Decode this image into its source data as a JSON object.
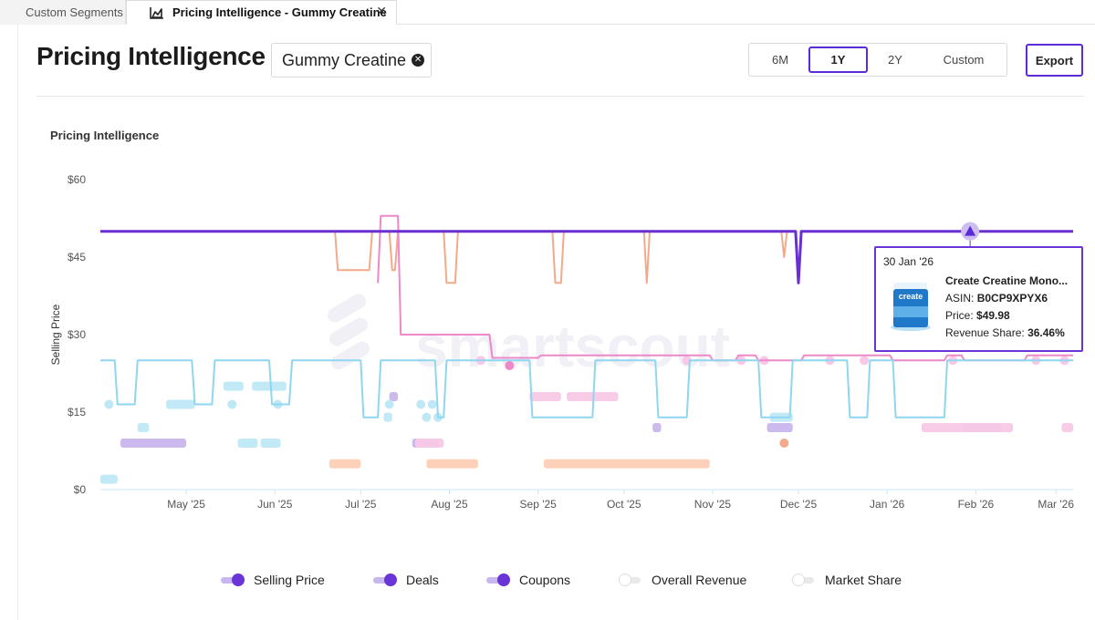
{
  "tabs": [
    {
      "label": "Custom Segments"
    },
    {
      "label": "Pricing Intelligence - Gummy Creatine"
    }
  ],
  "header": {
    "title": "Pricing Intelligence",
    "segment_chip": "Gummy Creatine",
    "ranges": [
      "6M",
      "1Y",
      "2Y",
      "Custom"
    ],
    "selected_range": "1Y",
    "export_label": "Export"
  },
  "chart_data": {
    "type": "line",
    "title": "Pricing Intelligence",
    "ylabel": "Selling Price",
    "y_ticks": [
      "$0",
      "$15",
      "$30",
      "$45",
      "$60"
    ],
    "ylim": [
      0,
      60
    ],
    "x_ticks": [
      "May '25",
      "Jun '25",
      "Jul '25",
      "Aug '25",
      "Sep '25",
      "Oct '25",
      "Nov '25",
      "Dec '25",
      "Jan '26",
      "Feb '26",
      "Mar '26"
    ],
    "xlim": [
      "2025-04-01",
      "2026-03-07"
    ],
    "series": [
      {
        "name": "Selling Price",
        "color": "#6a2fd0",
        "points": [
          [
            "2025-04-01",
            50
          ],
          [
            "2025-11-30",
            50
          ],
          [
            "2025-12-01",
            40
          ],
          [
            "2025-12-02",
            50
          ],
          [
            "2026-03-07",
            50
          ]
        ]
      },
      {
        "color": "#f4a98a",
        "points": [
          [
            "2025-06-22",
            50
          ],
          [
            "2025-06-23",
            42.5
          ],
          [
            "2025-07-04",
            42.5
          ],
          [
            "2025-07-05",
            50
          ],
          [
            "2025-07-11",
            50
          ],
          [
            "2025-07-12",
            42.5
          ],
          [
            "2025-07-13",
            42.5
          ],
          [
            "2025-07-14",
            50
          ],
          [
            "2025-07-30",
            50
          ],
          [
            "2025-07-31",
            40
          ],
          [
            "2025-08-03",
            40
          ],
          [
            "2025-08-04",
            50
          ],
          [
            "2025-09-06",
            50
          ],
          [
            "2025-09-07",
            40
          ],
          [
            "2025-09-09",
            40
          ],
          [
            "2025-09-10",
            50
          ],
          [
            "2025-10-08",
            50
          ],
          [
            "2025-10-09",
            40
          ],
          [
            "2025-10-10",
            50
          ],
          [
            "2025-11-25",
            50
          ],
          [
            "2025-11-26",
            45
          ],
          [
            "2025-11-27",
            50
          ]
        ]
      },
      {
        "color": "#ee88c8",
        "points": [
          [
            "2025-07-07",
            40
          ],
          [
            "2025-07-08",
            53
          ],
          [
            "2025-07-14",
            53
          ],
          [
            "2025-07-15",
            30
          ],
          [
            "2025-08-15",
            30
          ],
          [
            "2025-08-16",
            25.5
          ],
          [
            "2025-09-01",
            25.5
          ],
          [
            "2025-09-02",
            26
          ],
          [
            "2025-10-31",
            26
          ],
          [
            "2025-11-01",
            25
          ],
          [
            "2025-11-09",
            25
          ],
          [
            "2025-11-10",
            26
          ],
          [
            "2025-11-16",
            26
          ],
          [
            "2025-11-17",
            25
          ],
          [
            "2025-12-02",
            25
          ],
          [
            "2025-12-03",
            26
          ],
          [
            "2026-01-02",
            26
          ],
          [
            "2026-01-03",
            25
          ],
          [
            "2026-01-21",
            25
          ],
          [
            "2026-01-22",
            26
          ],
          [
            "2026-01-27",
            26
          ],
          [
            "2026-01-28",
            25
          ],
          [
            "2026-02-18",
            25
          ],
          [
            "2026-02-19",
            26
          ],
          [
            "2026-03-07",
            26
          ]
        ]
      },
      {
        "color": "#8fd6f0",
        "points": [
          [
            "2025-04-01",
            25
          ],
          [
            "2025-04-06",
            25
          ],
          [
            "2025-04-07",
            16.5
          ],
          [
            "2025-04-13",
            16.5
          ],
          [
            "2025-04-14",
            25
          ],
          [
            "2025-05-03",
            25
          ],
          [
            "2025-05-04",
            16.5
          ],
          [
            "2025-05-10",
            16.5
          ],
          [
            "2025-05-11",
            25
          ],
          [
            "2025-05-30",
            25
          ],
          [
            "2025-05-31",
            16.5
          ],
          [
            "2025-06-06",
            16.5
          ],
          [
            "2025-06-07",
            25
          ],
          [
            "2025-07-01",
            25
          ],
          [
            "2025-07-02",
            14
          ],
          [
            "2025-07-07",
            14
          ],
          [
            "2025-07-08",
            25
          ],
          [
            "2025-07-27",
            25
          ],
          [
            "2025-07-28",
            14
          ],
          [
            "2025-07-30",
            14
          ],
          [
            "2025-07-31",
            25
          ],
          [
            "2025-08-29",
            25
          ],
          [
            "2025-08-30",
            14
          ],
          [
            "2025-09-20",
            14
          ],
          [
            "2025-09-21",
            25
          ],
          [
            "2025-10-12",
            25
          ],
          [
            "2025-10-13",
            14
          ],
          [
            "2025-10-23",
            14
          ],
          [
            "2025-10-24",
            25
          ],
          [
            "2025-11-17",
            25
          ],
          [
            "2025-11-18",
            14
          ],
          [
            "2025-11-28",
            14
          ],
          [
            "2025-11-29",
            25
          ],
          [
            "2025-12-18",
            25
          ],
          [
            "2025-12-19",
            14
          ],
          [
            "2025-12-25",
            14
          ],
          [
            "2025-12-26",
            25
          ],
          [
            "2026-01-03",
            25
          ],
          [
            "2026-01-04",
            14
          ],
          [
            "2026-01-21",
            14
          ],
          [
            "2026-01-22",
            25
          ],
          [
            "2026-03-07",
            25
          ]
        ]
      }
    ],
    "bars": [
      {
        "color": "#bfe8f6",
        "from": "2025-04-01",
        "to": "2025-04-07",
        "y": 2
      },
      {
        "color": "#bfe8f6",
        "from": "2025-04-14",
        "to": "2025-04-18",
        "y": 12
      },
      {
        "color": "#bfe8f6",
        "from": "2025-04-24",
        "to": "2025-05-04",
        "y": 16.5
      },
      {
        "color": "#bfe8f6",
        "from": "2025-05-14",
        "to": "2025-05-21",
        "y": 20
      },
      {
        "color": "#bfe8f6",
        "from": "2025-05-24",
        "to": "2025-06-05",
        "y": 20
      },
      {
        "color": "#bfe8f6",
        "from": "2025-05-19",
        "to": "2025-05-26",
        "y": 9
      },
      {
        "color": "#bfe8f6",
        "from": "2025-05-27",
        "to": "2025-06-03",
        "y": 9
      },
      {
        "color": "#bfe8f6",
        "from": "2025-07-09",
        "to": "2025-07-12",
        "y": 14
      },
      {
        "color": "#bfe8f6",
        "from": "2025-11-21",
        "to": "2025-11-29",
        "y": 14
      },
      {
        "color": "#c9b6ee",
        "from": "2025-04-08",
        "to": "2025-05-01",
        "y": 9
      },
      {
        "color": "#c9b6ee",
        "from": "2025-07-19",
        "to": "2025-07-28",
        "y": 9
      },
      {
        "color": "#c9b6ee",
        "from": "2025-07-11",
        "to": "2025-07-14",
        "y": 18
      },
      {
        "color": "#c9b6ee",
        "from": "2025-10-11",
        "to": "2025-10-14",
        "y": 12
      },
      {
        "color": "#c9b6ee",
        "from": "2025-11-20",
        "to": "2025-11-29",
        "y": 12
      },
      {
        "color": "#c9b6ee",
        "from": "2026-01-27",
        "to": "2026-02-10",
        "y": 12
      },
      {
        "color": "#f8c8e6",
        "from": "2025-08-29",
        "to": "2025-09-09",
        "y": 18
      },
      {
        "color": "#f8c8e6",
        "from": "2025-09-11",
        "to": "2025-09-29",
        "y": 18
      },
      {
        "color": "#f8c8e6",
        "from": "2025-07-20",
        "to": "2025-07-30",
        "y": 9
      },
      {
        "color": "#f8c8e6",
        "from": "2026-01-13",
        "to": "2026-02-14",
        "y": 12
      },
      {
        "color": "#f8c8e6",
        "from": "2026-03-03",
        "to": "2026-03-07",
        "y": 12
      },
      {
        "color": "#fccdb5",
        "from": "2025-06-20",
        "to": "2025-07-01",
        "y": 5
      },
      {
        "color": "#fccdb5",
        "from": "2025-07-24",
        "to": "2025-08-11",
        "y": 5
      },
      {
        "color": "#fccdb5",
        "from": "2025-09-03",
        "to": "2025-10-31",
        "y": 5
      }
    ],
    "dots": [
      {
        "color": "#bfe8f6",
        "x": [
          "2025-04-04",
          "2025-05-17",
          "2025-06-02",
          "2025-07-11",
          "2025-07-22",
          "2025-07-26"
        ],
        "y": 16.5
      },
      {
        "color": "#bfe8f6",
        "x": [
          "2025-07-24",
          "2025-07-28"
        ],
        "y": 14
      },
      {
        "color": "#f8c8e6",
        "x": [
          "2025-08-12",
          "2025-10-23",
          "2025-11-11",
          "2025-11-19",
          "2025-12-12",
          "2025-12-24",
          "2026-01-24",
          "2026-02-22",
          "2026-03-04"
        ],
        "y": 25
      },
      {
        "color": "#f4a98a",
        "x": [
          "2025-11-26"
        ],
        "y": 9
      },
      {
        "color": "#ee88c8",
        "x": [
          "2025-08-22"
        ],
        "y": 24
      }
    ],
    "tooltip_marker": {
      "x": "2026-01-30",
      "y": 50
    }
  },
  "tooltip": {
    "date": "30 Jan '26",
    "product": "Create Creatine Mono...",
    "asin_label": "ASIN:",
    "asin": "B0CP9XPYX6",
    "price_label": "Price:",
    "price": "$49.98",
    "share_label": "Revenue Share:",
    "share": "36.46%",
    "image_lettering": "create"
  },
  "watermark": "smartscout",
  "legend": [
    {
      "label": "Selling Price",
      "on": true
    },
    {
      "label": "Deals",
      "on": true
    },
    {
      "label": "Coupons",
      "on": true
    },
    {
      "label": "Overall Revenue",
      "on": false
    },
    {
      "label": "Market Share",
      "on": false
    }
  ],
  "colors": {
    "accent": "#6a35d6",
    "selling_price": "#6a2fd0",
    "competitor_orange": "#f4a98a",
    "competitor_pink": "#ee88c8",
    "competitor_blue": "#8fd6f0"
  }
}
